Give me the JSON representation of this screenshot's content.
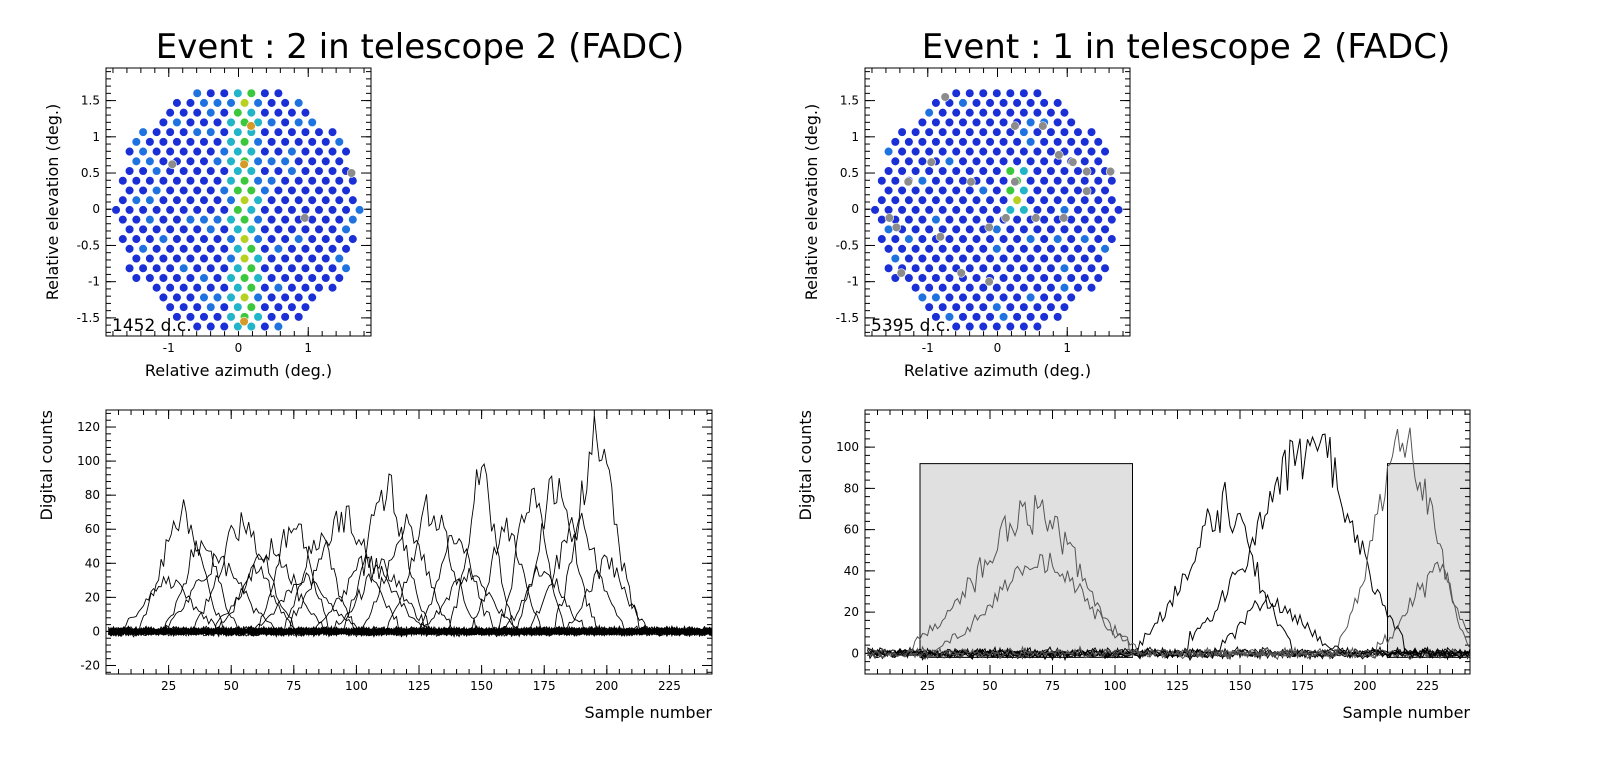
{
  "figure": {
    "left_title": "Event : 2 in telescope 2 (FADC)",
    "right_title": "Event : 1 in telescope 2 (FADC)"
  },
  "colors": {
    "axis": "#000000",
    "pixel_base": "#1a2fd6",
    "pixel_mid": "#1e73e0",
    "pixel_cyan": "#22b4c8",
    "pixel_green": "#3cc83c",
    "pixel_yellow": "#b8d020",
    "pixel_orange": "#d69a28",
    "pixel_dead": "#8c8c8c",
    "window_fill": "#e0e0e0",
    "trace": "#000000",
    "trace_grey": "#555555"
  },
  "chart_data": [
    {
      "id": "left-camera",
      "type": "heatmap",
      "title": "Event : 2 in telescope 2 (FADC)",
      "xlabel": "Relative azimuth (deg.)",
      "ylabel": "Relative elevation (deg.)",
      "xlim": [
        -1.9,
        1.9
      ],
      "ylim": [
        -1.75,
        1.95
      ],
      "xticks": [
        -1,
        0,
        1
      ],
      "yticks": [
        -1.5,
        -1,
        -0.5,
        0,
        0.5,
        1,
        1.5
      ],
      "camera_radius": 1.75,
      "pixel_spacing": 0.1,
      "annotation": "1452 d.c.",
      "signal_band": {
        "x_center": 0.08,
        "half_width": 0.17
      },
      "dead_pixels": [
        [
          -0.95,
          0.62
        ],
        [
          1.62,
          0.5
        ],
        [
          0.95,
          -0.12
        ]
      ],
      "hot_pixels": [
        [
          0.08,
          -1.55
        ],
        [
          0.08,
          0.62
        ],
        [
          0.18,
          1.15
        ]
      ]
    },
    {
      "id": "right-camera",
      "type": "heatmap",
      "title": "Event : 1 in telescope 2 (FADC)",
      "xlabel": "Relative azimuth (deg.)",
      "ylabel": "Relative elevation (deg.)",
      "xlim": [
        -1.9,
        1.9
      ],
      "ylim": [
        -1.75,
        1.95
      ],
      "xticks": [
        -1,
        0,
        1
      ],
      "yticks": [
        -1.5,
        -1,
        -0.5,
        0,
        0.5,
        1,
        1.5
      ],
      "camera_radius": 1.75,
      "pixel_spacing": 0.1,
      "annotation": "5395 d.c.",
      "signal_cluster": {
        "x_center": 0.28,
        "y_center": 0.25,
        "half_width": 0.12,
        "half_height": 0.32
      },
      "dead_pixels": [
        [
          -0.75,
          1.55
        ],
        [
          0.25,
          1.15
        ],
        [
          0.65,
          1.15
        ],
        [
          -0.95,
          0.65
        ],
        [
          0.88,
          0.75
        ],
        [
          1.08,
          0.65
        ],
        [
          1.28,
          0.52
        ],
        [
          1.62,
          0.52
        ],
        [
          -1.28,
          0.38
        ],
        [
          -0.38,
          0.38
        ],
        [
          0.25,
          0.38
        ],
        [
          1.28,
          0.25
        ],
        [
          -1.55,
          -0.12
        ],
        [
          -1.45,
          -0.25
        ],
        [
          0.12,
          -0.12
        ],
        [
          0.55,
          -0.12
        ],
        [
          0.95,
          -0.12
        ],
        [
          -0.12,
          -0.25
        ],
        [
          -0.82,
          -0.38
        ],
        [
          -1.38,
          -0.88
        ],
        [
          -0.52,
          -0.88
        ],
        [
          -0.12,
          -1.0
        ]
      ]
    },
    {
      "id": "left-traces",
      "type": "line",
      "xlabel": "Sample number",
      "ylabel": "Digital counts",
      "xlim": [
        0,
        242
      ],
      "ylim": [
        -25,
        130
      ],
      "xticks": [
        25,
        50,
        75,
        100,
        125,
        150,
        175,
        200,
        225
      ],
      "yticks": [
        -20,
        0,
        20,
        40,
        60,
        80,
        100,
        120
      ],
      "n_traces": 40,
      "series_peaks": [
        {
          "peak_x": 30,
          "peak_y": 68
        },
        {
          "peak_x": 38,
          "peak_y": 52
        },
        {
          "peak_x": 45,
          "peak_y": 40
        },
        {
          "peak_x": 55,
          "peak_y": 63
        },
        {
          "peak_x": 65,
          "peak_y": 48
        },
        {
          "peak_x": 75,
          "peak_y": 65
        },
        {
          "peak_x": 85,
          "peak_y": 55
        },
        {
          "peak_x": 95,
          "peak_y": 68
        },
        {
          "peak_x": 105,
          "peak_y": 40
        },
        {
          "peak_x": 112,
          "peak_y": 83
        },
        {
          "peak_x": 120,
          "peak_y": 60
        },
        {
          "peak_x": 130,
          "peak_y": 73
        },
        {
          "peak_x": 140,
          "peak_y": 55
        },
        {
          "peak_x": 150,
          "peak_y": 88
        },
        {
          "peak_x": 160,
          "peak_y": 60
        },
        {
          "peak_x": 170,
          "peak_y": 82
        },
        {
          "peak_x": 180,
          "peak_y": 88
        },
        {
          "peak_x": 188,
          "peak_y": 62
        },
        {
          "peak_x": 196,
          "peak_y": 112
        },
        {
          "peak_x": 200,
          "peak_y": 40
        },
        {
          "peak_x": 25,
          "peak_y": 30
        },
        {
          "peak_x": 60,
          "peak_y": 35
        },
        {
          "peak_x": 80,
          "peak_y": 30
        },
        {
          "peak_x": 110,
          "peak_y": 38
        },
        {
          "peak_x": 145,
          "peak_y": 32
        },
        {
          "peak_x": 175,
          "peak_y": 36
        }
      ]
    },
    {
      "id": "right-traces",
      "type": "line",
      "xlabel": "Sample number",
      "ylabel": "Digital counts",
      "xlim": [
        0,
        242
      ],
      "ylim": [
        -10,
        118
      ],
      "xticks": [
        25,
        50,
        75,
        100,
        125,
        150,
        175,
        200,
        225
      ],
      "yticks": [
        0,
        20,
        40,
        60,
        80,
        100
      ],
      "windows": [
        {
          "x_start": 22,
          "x_end": 107,
          "y_top": 92
        },
        {
          "x_start": 209,
          "x_end": 242,
          "y_top": 92
        }
      ],
      "series": [
        {
          "name": "trace-a",
          "start": 20,
          "peak_x": 68,
          "peak_y": 68,
          "end": 105,
          "color": "grey"
        },
        {
          "name": "trace-b",
          "start": 30,
          "peak_x": 70,
          "peak_y": 45,
          "end": 108,
          "color": "grey"
        },
        {
          "name": "trace-c",
          "start": 110,
          "peak_x": 145,
          "peak_y": 70,
          "end": 170,
          "color": "black"
        },
        {
          "name": "trace-d",
          "start": 130,
          "peak_x": 180,
          "peak_y": 98,
          "end": 215,
          "color": "black"
        },
        {
          "name": "trace-e",
          "start": 190,
          "peak_x": 216,
          "peak_y": 100,
          "end": 242,
          "color": "grey"
        },
        {
          "name": "trace-f",
          "start": 140,
          "peak_x": 160,
          "peak_y": 25,
          "end": 190,
          "color": "black"
        },
        {
          "name": "trace-g",
          "start": 205,
          "peak_x": 230,
          "peak_y": 40,
          "end": 242,
          "color": "grey"
        }
      ]
    }
  ]
}
